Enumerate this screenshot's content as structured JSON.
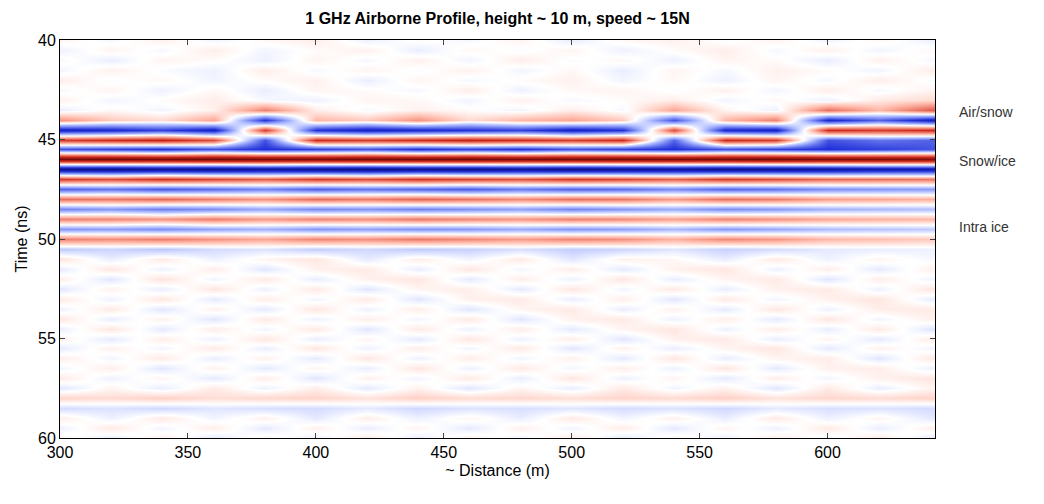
{
  "chart_data": {
    "type": "heatmap",
    "title": "1 GHz Airborne Profile, height ~ 10 m, speed ~ 15N",
    "x_label": "~ Distance (m)",
    "y_label": "Time (ns)",
    "xlim": [
      300,
      642
    ],
    "ylim": [
      60,
      40
    ],
    "xticks": [
      300,
      350,
      400,
      450,
      500,
      550,
      600
    ],
    "yticks": [
      40,
      45,
      50,
      55,
      60
    ],
    "zlim": [
      -1,
      1
    ],
    "grid": false,
    "annotations": [
      {
        "text": "Air/snow",
        "y": 43.6
      },
      {
        "text": "Snow/ice",
        "y": 46.1
      },
      {
        "text": "Intra ice",
        "y": 49.4
      }
    ],
    "x": [
      300,
      320,
      340,
      360,
      380,
      400,
      420,
      440,
      460,
      480,
      500,
      520,
      540,
      560,
      580,
      600,
      620,
      640
    ],
    "y": [
      40,
      40.5,
      41,
      41.5,
      42,
      42.5,
      43,
      43.5,
      44,
      44.5,
      45,
      45.5,
      46,
      46.5,
      47,
      47.5,
      48,
      48.5,
      49,
      49.5,
      50,
      50.5,
      51,
      51.5,
      52,
      52.5,
      53,
      53.5,
      54,
      54.5,
      55,
      55.5,
      56,
      56.5,
      57,
      57.5,
      58,
      58.5,
      59,
      59.5,
      60
    ],
    "z": [
      [
        0.03,
        -0.02,
        0.04,
        -0.03,
        0.02,
        0.05,
        -0.04,
        0.01,
        -0.02,
        0.03,
        -0.05,
        0.02,
        0.04,
        -0.01,
        0.03,
        -0.03,
        0.02,
        -0.04
      ],
      [
        -0.04,
        0.03,
        -0.02,
        0.05,
        -0.03,
        0.01,
        0.04,
        -0.05,
        0.02,
        -0.01,
        0.03,
        -0.04,
        0.01,
        0.05,
        -0.02,
        0.04,
        -0.03,
        0.02
      ],
      [
        0.02,
        -0.05,
        0.03,
        0.01,
        -0.04,
        0.03,
        -0.02,
        0.04,
        -0.03,
        0.05,
        -0.01,
        0.02,
        -0.04,
        0.03,
        0.01,
        -0.05,
        0.04,
        -0.02
      ],
      [
        -0.03,
        0.04,
        -0.01,
        -0.04,
        0.05,
        -0.02,
        0.03,
        -0.01,
        0.04,
        -0.03,
        0.02,
        -0.05,
        0.03,
        -0.02,
        0.04,
        0.01,
        -0.03,
        0.05
      ],
      [
        0.05,
        -0.01,
        0.02,
        -0.03,
        0.01,
        0.04,
        -0.05,
        0.03,
        -0.02,
        0.01,
        0.04,
        -0.03,
        0.02,
        -0.04,
        0.03,
        -0.02,
        0.05,
        -0.01
      ],
      [
        -0.02,
        0.03,
        -0.04,
        0.02,
        -0.05,
        0.03,
        0.01,
        -0.02,
        0.05,
        -0.04,
        0.02,
        0.03,
        -0.01,
        0.04,
        -0.03,
        0.05,
        -0.02,
        0.03
      ],
      [
        0.04,
        -0.03,
        0.01,
        0.05,
        -0.02,
        -0.04,
        0.03,
        0.02,
        -0.03,
        0.04,
        -0.02,
        0.01,
        0.05,
        -0.03,
        0.02,
        -0.04,
        0.06,
        0.1
      ],
      [
        -0.05,
        0.02,
        -0.03,
        0.04,
        0.35,
        0.05,
        -0.02,
        0.04,
        0.01,
        -0.03,
        0.05,
        -0.02,
        0.25,
        0.03,
        -0.04,
        0.4,
        0.2,
        0.45
      ],
      [
        0.3,
        0.15,
        0.1,
        0.25,
        -0.6,
        0.2,
        0.15,
        0.3,
        0.1,
        0.2,
        0.25,
        0.15,
        -0.5,
        0.2,
        0.35,
        -0.65,
        -0.45,
        -0.7
      ],
      [
        -0.7,
        -0.65,
        -0.55,
        -0.7,
        0.55,
        -0.6,
        -0.7,
        -0.65,
        -0.6,
        -0.55,
        -0.7,
        -0.6,
        0.5,
        -0.65,
        -0.7,
        0.6,
        0.55,
        0.6
      ],
      [
        0.55,
        0.6,
        0.65,
        0.5,
        -0.5,
        0.6,
        0.55,
        0.6,
        0.65,
        0.6,
        0.55,
        0.6,
        -0.45,
        0.6,
        0.55,
        -0.5,
        -0.4,
        -0.45
      ],
      [
        -0.5,
        -0.55,
        -0.6,
        -0.5,
        -0.6,
        -0.55,
        -0.5,
        -0.6,
        -0.55,
        -0.6,
        -0.5,
        -0.55,
        -0.6,
        -0.5,
        -0.55,
        -0.6,
        -0.55,
        -0.5
      ],
      [
        0.95,
        0.96,
        0.94,
        0.97,
        0.95,
        0.93,
        0.96,
        0.95,
        0.97,
        0.94,
        0.95,
        0.96,
        0.94,
        0.95,
        0.97,
        0.93,
        0.92,
        0.9
      ],
      [
        -0.9,
        -0.92,
        -0.88,
        -0.91,
        -0.85,
        -0.9,
        -0.93,
        -0.89,
        -0.91,
        -0.87,
        -0.92,
        -0.9,
        -0.86,
        -0.91,
        -0.89,
        -0.85,
        -0.8,
        -0.78
      ],
      [
        0.55,
        0.5,
        0.58,
        0.52,
        0.45,
        0.55,
        0.5,
        0.57,
        0.53,
        0.48,
        0.56,
        0.52,
        0.44,
        0.55,
        0.5,
        0.42,
        0.4,
        0.38
      ],
      [
        -0.45,
        -0.4,
        -0.48,
        -0.42,
        -0.35,
        -0.46,
        -0.4,
        -0.44,
        -0.47,
        -0.38,
        -0.45,
        -0.42,
        -0.33,
        -0.44,
        -0.4,
        -0.32,
        -0.3,
        -0.28
      ],
      [
        0.4,
        0.38,
        0.42,
        0.36,
        0.3,
        0.41,
        0.37,
        0.43,
        0.39,
        0.33,
        0.4,
        0.38,
        0.28,
        0.4,
        0.36,
        0.27,
        0.25,
        0.22
      ],
      [
        -0.35,
        -0.3,
        -0.37,
        -0.33,
        -0.25,
        -0.34,
        -0.31,
        -0.36,
        -0.32,
        -0.27,
        -0.35,
        -0.3,
        -0.24,
        -0.33,
        -0.29,
        -0.22,
        -0.2,
        -0.18
      ],
      [
        0.35,
        0.33,
        0.3,
        0.36,
        0.28,
        0.34,
        0.31,
        0.37,
        0.33,
        0.29,
        0.35,
        0.32,
        0.26,
        0.34,
        0.3,
        0.24,
        0.22,
        0.2
      ],
      [
        -0.3,
        -0.28,
        -0.32,
        -0.26,
        -0.22,
        -0.3,
        -0.27,
        -0.31,
        -0.29,
        -0.24,
        -0.3,
        -0.27,
        -0.2,
        -0.29,
        -0.25,
        -0.19,
        -0.17,
        -0.15
      ],
      [
        0.35,
        0.32,
        0.36,
        0.3,
        0.25,
        0.34,
        0.31,
        0.37,
        0.33,
        0.28,
        0.34,
        0.31,
        0.22,
        0.33,
        0.29,
        0.2,
        0.18,
        0.15
      ],
      [
        -0.15,
        -0.12,
        -0.16,
        -0.1,
        -0.08,
        -0.14,
        -0.11,
        -0.15,
        -0.13,
        -0.09,
        -0.14,
        -0.12,
        -0.07,
        -0.13,
        -0.1,
        -0.06,
        -0.05,
        -0.04
      ],
      [
        0.08,
        -0.05,
        0.06,
        -0.04,
        0.03,
        0.07,
        -0.06,
        0.05,
        -0.03,
        0.06,
        -0.07,
        0.04,
        0.02,
        -0.05,
        0.06,
        -0.04,
        0.03,
        -0.02
      ],
      [
        -0.06,
        0.07,
        -0.04,
        0.05,
        -0.07,
        0.04,
        0.06,
        -0.05,
        0.07,
        -0.03,
        0.05,
        -0.06,
        0.04,
        0.07,
        -0.04,
        0.05,
        -0.06,
        0.04
      ],
      [
        0.05,
        -0.07,
        0.08,
        -0.03,
        0.06,
        -0.05,
        0.04,
        0.07,
        -0.06,
        0.05,
        -0.04,
        0.07,
        -0.05,
        0.03,
        0.06,
        -0.07,
        0.05,
        -0.03
      ],
      [
        -0.07,
        0.04,
        -0.05,
        0.07,
        -0.04,
        0.06,
        -0.07,
        0.03,
        0.05,
        -0.06,
        0.07,
        -0.03,
        0.06,
        -0.05,
        0.04,
        0.06,
        -0.04,
        0.07
      ],
      [
        0.06,
        -0.04,
        0.07,
        -0.06,
        0.05,
        -0.03,
        0.06,
        -0.07,
        0.04,
        0.06,
        -0.05,
        0.05,
        -0.07,
        0.06,
        -0.03,
        0.04,
        0.07,
        -0.05
      ],
      [
        -0.04,
        0.06,
        -0.07,
        0.04,
        -0.06,
        0.07,
        -0.04,
        0.05,
        -0.07,
        0.03,
        0.06,
        -0.05,
        0.04,
        -0.06,
        0.07,
        -0.04,
        0.05,
        0.06
      ],
      [
        0.07,
        -0.05,
        0.04,
        -0.07,
        0.06,
        -0.04,
        0.05,
        -0.03,
        0.06,
        -0.07,
        0.04,
        0.06,
        -0.04,
        0.05,
        -0.06,
        0.07,
        -0.03,
        0.04
      ],
      [
        -0.05,
        0.07,
        -0.06,
        0.05,
        -0.03,
        0.06,
        -0.07,
        0.06,
        -0.04,
        0.05,
        -0.06,
        0.03,
        0.07,
        -0.04,
        0.05,
        -0.05,
        0.06,
        -0.07
      ],
      [
        0.04,
        -0.06,
        0.05,
        -0.04,
        0.07,
        -0.05,
        0.03,
        -0.06,
        0.07,
        -0.04,
        0.05,
        -0.07,
        0.04,
        0.06,
        -0.05,
        0.03,
        -0.06,
        0.05
      ],
      [
        -0.06,
        0.04,
        -0.03,
        0.06,
        -0.05,
        0.07,
        -0.04,
        0.05,
        -0.03,
        0.06,
        -0.07,
        0.04,
        -0.05,
        0.03,
        0.07,
        -0.06,
        0.04,
        -0.03
      ],
      [
        0.05,
        -0.03,
        0.06,
        -0.05,
        0.04,
        -0.06,
        0.07,
        -0.04,
        0.05,
        -0.03,
        0.04,
        -0.06,
        0.07,
        -0.05,
        0.03,
        0.05,
        -0.07,
        0.06
      ],
      [
        -0.03,
        0.05,
        -0.07,
        0.04,
        -0.06,
        0.03,
        -0.05,
        0.07,
        -0.04,
        0.06,
        -0.03,
        0.05,
        -0.04,
        0.07,
        -0.06,
        0.04,
        0.05,
        -0.04
      ],
      [
        0.06,
        -0.04,
        0.03,
        -0.06,
        0.05,
        -0.07,
        0.04,
        -0.03,
        0.06,
        -0.05,
        0.07,
        -0.04,
        0.03,
        -0.06,
        0.05,
        -0.03,
        0.04,
        0.07
      ],
      [
        -0.07,
        0.03,
        -0.05,
        0.06,
        -0.04,
        0.05,
        -0.06,
        0.04,
        -0.07,
        0.03,
        -0.05,
        0.06,
        -0.03,
        0.04,
        -0.07,
        0.06,
        -0.05,
        0.03
      ],
      [
        0.12,
        0.1,
        0.13,
        0.09,
        0.11,
        0.12,
        0.08,
        0.13,
        0.1,
        0.11,
        0.09,
        0.12,
        0.1,
        0.13,
        0.08,
        0.11,
        0.1,
        0.12
      ],
      [
        -0.1,
        -0.08,
        -0.11,
        -0.07,
        -0.09,
        -0.1,
        -0.06,
        -0.11,
        -0.08,
        -0.09,
        -0.07,
        -0.1,
        -0.08,
        -0.11,
        -0.06,
        -0.09,
        -0.08,
        -0.1
      ],
      [
        0.05,
        -0.04,
        0.06,
        -0.03,
        0.04,
        -0.06,
        0.05,
        -0.04,
        0.03,
        -0.05,
        0.06,
        -0.03,
        0.04,
        -0.05,
        0.06,
        -0.04,
        0.03,
        -0.06
      ],
      [
        -0.04,
        0.06,
        -0.03,
        0.05,
        -0.06,
        0.04,
        -0.05,
        0.03,
        -0.06,
        0.04,
        -0.03,
        0.05,
        -0.06,
        0.03,
        -0.04,
        0.06,
        -0.05,
        0.04
      ],
      [
        0.03,
        -0.05,
        0.04,
        -0.06,
        0.03,
        -0.04,
        0.06,
        -0.05,
        0.04,
        -0.03,
        0.05,
        -0.06,
        0.03,
        -0.04,
        0.05,
        -0.03,
        0.06,
        -0.05
      ]
    ]
  }
}
